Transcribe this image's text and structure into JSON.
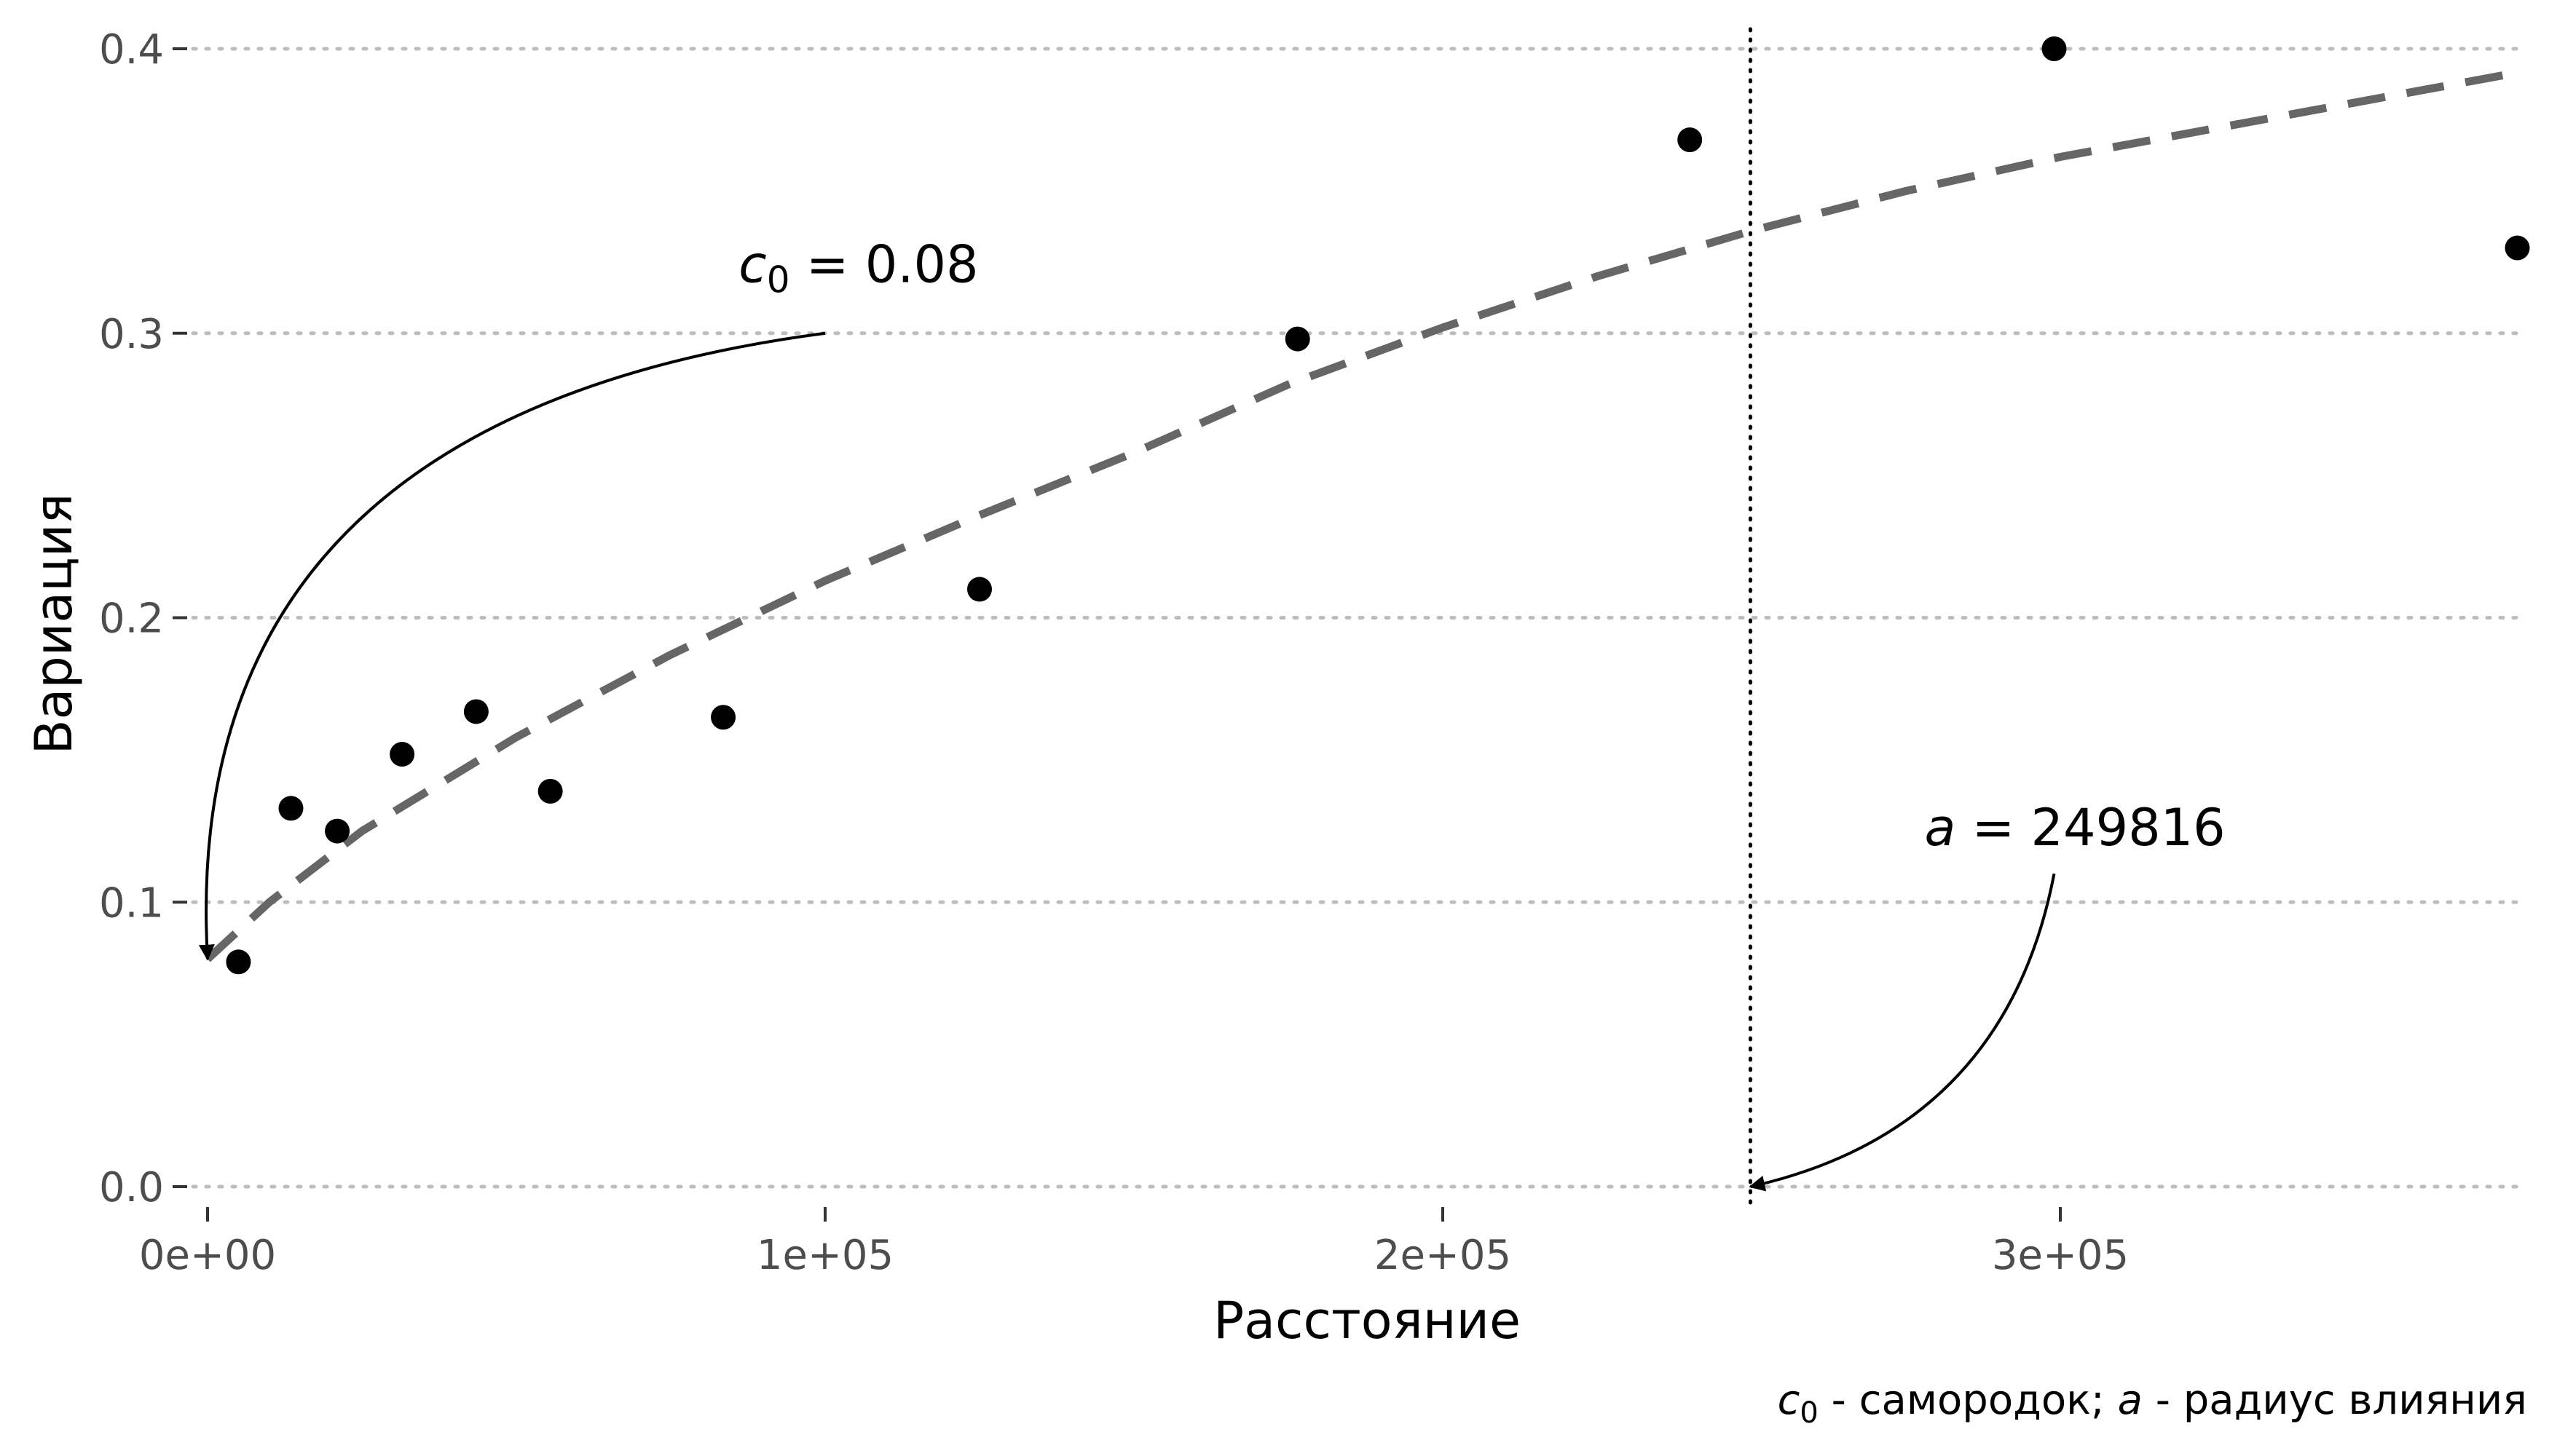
{
  "chart_data": {
    "type": "scatter",
    "xlabel": "Расстояние",
    "ylabel": "Вариация",
    "xlim": [
      0,
      375000
    ],
    "ylim": [
      0,
      0.4
    ],
    "x_ticks": [
      {
        "value": 0,
        "label": "0e+00"
      },
      {
        "value": 100000,
        "label": "1e+05"
      },
      {
        "value": 200000,
        "label": "2e+05"
      },
      {
        "value": 300000,
        "label": "3e+05"
      }
    ],
    "y_ticks": [
      {
        "value": 0.0,
        "label": "0.0"
      },
      {
        "value": 0.1,
        "label": "0.1"
      },
      {
        "value": 0.2,
        "label": "0.2"
      },
      {
        "value": 0.3,
        "label": "0.3"
      },
      {
        "value": 0.4,
        "label": "0.4"
      }
    ],
    "grid": "horizontal dotted",
    "points": [
      {
        "x": 5000,
        "y": 0.079
      },
      {
        "x": 13500,
        "y": 0.133
      },
      {
        "x": 21000,
        "y": 0.125
      },
      {
        "x": 31500,
        "y": 0.152
      },
      {
        "x": 43500,
        "y": 0.167
      },
      {
        "x": 55500,
        "y": 0.139
      },
      {
        "x": 83500,
        "y": 0.165
      },
      {
        "x": 125000,
        "y": 0.21
      },
      {
        "x": 176500,
        "y": 0.298
      },
      {
        "x": 240000,
        "y": 0.368
      },
      {
        "x": 299000,
        "y": 0.4
      },
      {
        "x": 374000,
        "y": 0.33
      }
    ],
    "model_curve": {
      "style": "dashed",
      "color": "#666666",
      "points": [
        {
          "x": 0,
          "y": 0.08
        },
        {
          "x": 10000,
          "y": 0.1
        },
        {
          "x": 25000,
          "y": 0.125
        },
        {
          "x": 50000,
          "y": 0.158
        },
        {
          "x": 75000,
          "y": 0.187
        },
        {
          "x": 100000,
          "y": 0.213
        },
        {
          "x": 125000,
          "y": 0.236
        },
        {
          "x": 150000,
          "y": 0.258
        },
        {
          "x": 175000,
          "y": 0.282
        },
        {
          "x": 200000,
          "y": 0.302
        },
        {
          "x": 225000,
          "y": 0.32
        },
        {
          "x": 250000,
          "y": 0.336
        },
        {
          "x": 275000,
          "y": 0.35
        },
        {
          "x": 300000,
          "y": 0.362
        },
        {
          "x": 325000,
          "y": 0.372
        },
        {
          "x": 350000,
          "y": 0.382
        },
        {
          "x": 375000,
          "y": 0.392
        }
      ]
    },
    "vline": {
      "x": 249816,
      "style": "dotted"
    },
    "annotations": [
      {
        "symbol": "c",
        "subscript": "0",
        "text": " = 0.08",
        "label_at": {
          "x": 86000,
          "y": 0.318
        },
        "arrow_from": {
          "x": 100000,
          "y": 0.3
        },
        "arrow_ctrl": {
          "x": -5000,
          "y": 0.27
        },
        "arrow_to": {
          "x": 0,
          "y": 0.08
        }
      },
      {
        "symbol": "a",
        "subscript": "",
        "text": " = 249816",
        "label_at": {
          "x": 278000,
          "y": 0.12
        },
        "arrow_from": {
          "x": 299000,
          "y": 0.11
        },
        "arrow_ctrl": {
          "x": 291000,
          "y": 0.02
        },
        "arrow_to": {
          "x": 249816,
          "y": 0.0
        }
      }
    ],
    "caption": {
      "sym1": "c",
      "sub1": "0",
      "text1": " - самородок; ",
      "sym2": "a",
      "text2": " - радиус влияния"
    },
    "colors": {
      "points": "#000000",
      "curve": "#666666",
      "grid": "#bdbdbd",
      "ticks": "#4d4d4d"
    }
  }
}
